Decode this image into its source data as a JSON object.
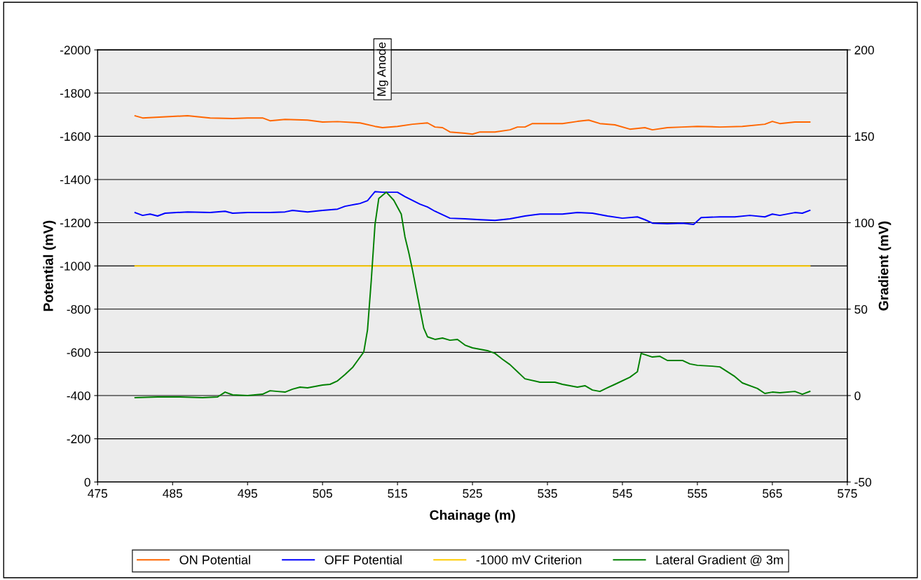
{
  "chart_data": {
    "type": "line",
    "xlabel": "Chainage (m)",
    "ylabel": "Potential (mV)",
    "y2label": "Gradient (mV)",
    "xlim": [
      475,
      575
    ],
    "xticks": [
      475,
      485,
      495,
      505,
      515,
      525,
      535,
      545,
      555,
      565,
      575
    ],
    "ylim": [
      0,
      -2000
    ],
    "yticks": [
      -2000,
      -1800,
      -1600,
      -1400,
      -1200,
      -1000,
      -800,
      -600,
      -400,
      -200,
      0
    ],
    "y2lim": [
      -50,
      200
    ],
    "y2ticks": [
      -50,
      0,
      50,
      100,
      150,
      200
    ],
    "grid": "y",
    "legend": "bottom",
    "annotations": [
      "Mg Anode"
    ],
    "series": [
      {
        "name": "ON Potential",
        "color": "#ff6600",
        "x": [
          480,
          481,
          485,
          487,
          490,
          493,
          495,
          497,
          498,
          500,
          503,
          505,
          507,
          510,
          512,
          513,
          515,
          517,
          519,
          520,
          521,
          522,
          524,
          525,
          526,
          528,
          530,
          531,
          532,
          533,
          535,
          537,
          539,
          540.5,
          542,
          544,
          546,
          548,
          549,
          551,
          553,
          555,
          558,
          561,
          564,
          565,
          566,
          568,
          570
        ],
        "values": [
          -1695,
          -1685,
          -1692,
          -1695,
          -1685,
          -1682,
          -1685,
          -1685,
          -1672,
          -1678,
          -1675,
          -1666,
          -1668,
          -1662,
          -1646,
          -1640,
          -1646,
          -1656,
          -1662,
          -1643,
          -1640,
          -1620,
          -1614,
          -1610,
          -1620,
          -1620,
          -1630,
          -1643,
          -1643,
          -1659,
          -1659,
          -1659,
          -1669,
          -1675,
          -1659,
          -1653,
          -1633,
          -1640,
          -1630,
          -1640,
          -1643,
          -1646,
          -1643,
          -1646,
          -1656,
          -1669,
          -1659,
          -1666,
          -1666
        ]
      },
      {
        "name": "OFF Potential",
        "color": "#0000ff",
        "x": [
          480,
          481,
          482,
          483,
          484,
          487,
          490,
          492,
          493,
          495,
          498,
          500,
          501,
          503,
          505,
          507,
          508,
          510,
          511,
          512,
          513,
          515,
          516,
          518,
          519,
          520,
          522,
          524,
          526,
          528,
          530,
          532,
          534,
          537,
          539,
          541,
          543,
          545,
          547,
          548,
          549,
          551,
          553,
          554.5,
          555.5,
          558,
          560,
          562,
          564,
          565,
          566,
          568,
          569,
          570
        ],
        "values": [
          -1247,
          -1234,
          -1240,
          -1231,
          -1244,
          -1250,
          -1247,
          -1253,
          -1244,
          -1247,
          -1247,
          -1250,
          -1257,
          -1250,
          -1257,
          -1263,
          -1276,
          -1289,
          -1302,
          -1344,
          -1341,
          -1341,
          -1321,
          -1286,
          -1273,
          -1253,
          -1221,
          -1218,
          -1214,
          -1211,
          -1218,
          -1231,
          -1240,
          -1240,
          -1247,
          -1244,
          -1231,
          -1221,
          -1227,
          -1214,
          -1198,
          -1195,
          -1198,
          -1192,
          -1224,
          -1227,
          -1227,
          -1234,
          -1227,
          -1240,
          -1234,
          -1247,
          -1244,
          -1257
        ]
      },
      {
        "name": "-1000 mV Criterion",
        "color": "#ffcc00",
        "x": [
          480,
          570
        ],
        "values": [
          -1000,
          -1000
        ]
      },
      {
        "name": "Lateral Gradient @ 3m",
        "color": "#008000",
        "axis": "y2",
        "x": [
          480,
          483,
          486,
          489,
          491,
          492,
          493,
          495,
          497,
          498,
          499,
          500,
          501,
          502,
          503,
          505,
          506,
          507,
          508,
          509,
          510.5,
          511,
          511.5,
          512,
          512.5,
          513.5,
          514.5,
          515.5,
          516,
          516.5,
          517,
          518,
          518.5,
          519,
          520,
          521,
          522,
          523,
          524,
          525,
          527,
          528,
          529,
          530,
          531,
          532,
          534,
          536,
          537,
          539,
          540,
          541,
          542,
          543,
          544,
          546,
          547,
          547.5,
          549,
          550,
          551,
          553,
          554,
          555,
          557,
          558,
          560,
          561,
          563,
          564,
          565,
          566,
          568,
          569,
          570
        ],
        "values": [
          -1.2,
          -0.8,
          -0.8,
          -1.2,
          -0.8,
          2.0,
          0.4,
          0,
          0.8,
          2.8,
          2.4,
          2.0,
          3.7,
          4.9,
          4.5,
          6.1,
          6.5,
          8.5,
          12.2,
          16.2,
          25.2,
          38,
          66.6,
          99,
          114,
          117.7,
          113,
          105,
          91.7,
          82.8,
          72.6,
          50,
          39,
          34,
          32.5,
          33.3,
          32,
          32.5,
          29.2,
          27.6,
          26,
          24.4,
          21,
          17.9,
          13.8,
          9.7,
          7.7,
          7.7,
          6.5,
          4.9,
          5.7,
          3.2,
          2.4,
          4.5,
          6.5,
          10.6,
          13.8,
          24.4,
          22.3,
          22.7,
          20.3,
          20.3,
          18.3,
          17.5,
          17,
          16.6,
          11,
          7.3,
          4.1,
          1.2,
          2,
          1.6,
          2.4,
          0.8,
          2.4
        ]
      }
    ]
  }
}
